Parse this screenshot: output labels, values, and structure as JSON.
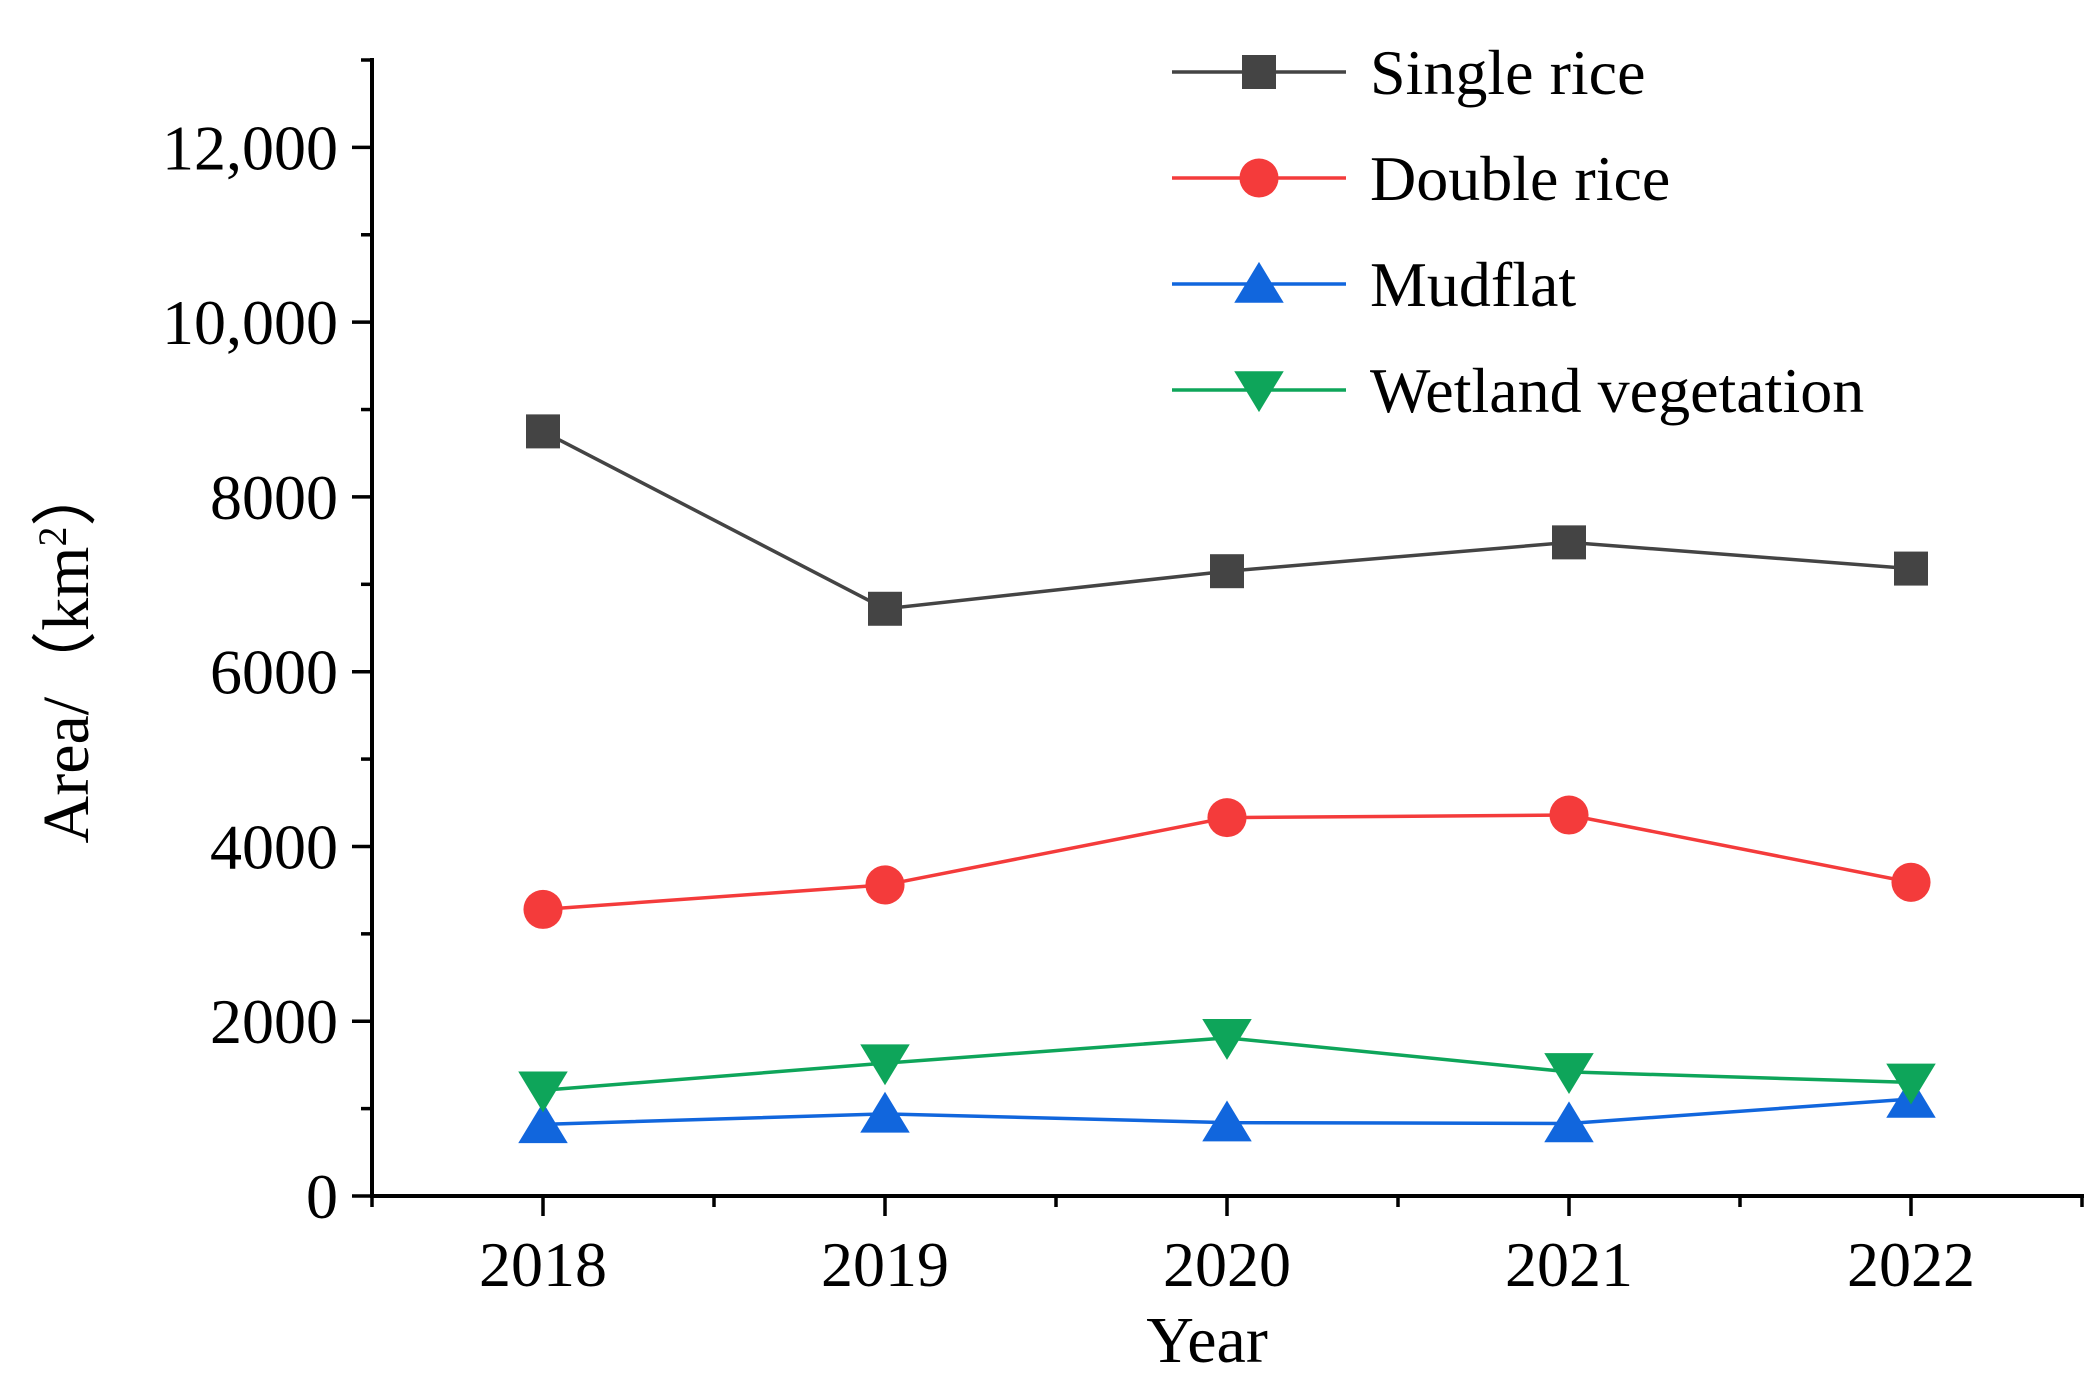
{
  "chart_data": {
    "type": "line",
    "title": "",
    "xlabel": "Year",
    "ylabel_prefix": "Area/（km",
    "ylabel_sup": "2",
    "ylabel_suffix": "）",
    "ylim": [
      0,
      13000
    ],
    "xlim": [
      2017.5,
      2022.5
    ],
    "y_ticks": [
      0,
      2000,
      4000,
      6000,
      8000,
      10000,
      12000
    ],
    "y_tick_labels": [
      "0",
      "2000",
      "4000",
      "6000",
      "8000",
      "10,000",
      "12,000"
    ],
    "y_minor_step": 1000,
    "x_minor_step": 0.5,
    "x": [
      2018,
      2019,
      2020,
      2021,
      2022
    ],
    "x_tick_labels": [
      "2018",
      "2019",
      "2020",
      "2021",
      "2022"
    ],
    "grid": false,
    "legend_position": "top-right",
    "series": [
      {
        "name": "Single rice",
        "color": "#444444",
        "marker": "square",
        "values": [
          8750,
          6720,
          7150,
          7480,
          7180
        ]
      },
      {
        "name": "Double rice",
        "color": "#f43b3b",
        "marker": "circle",
        "values": [
          3280,
          3560,
          4330,
          4360,
          3590
        ]
      },
      {
        "name": "Mudflat",
        "color": "#1166dd",
        "marker": "triangle-up",
        "values": [
          820,
          940,
          840,
          830,
          1110
        ]
      },
      {
        "name": "Wetland vegetation",
        "color": "#0ea55a",
        "marker": "triangle-down",
        "values": [
          1210,
          1520,
          1810,
          1420,
          1300
        ]
      }
    ]
  }
}
